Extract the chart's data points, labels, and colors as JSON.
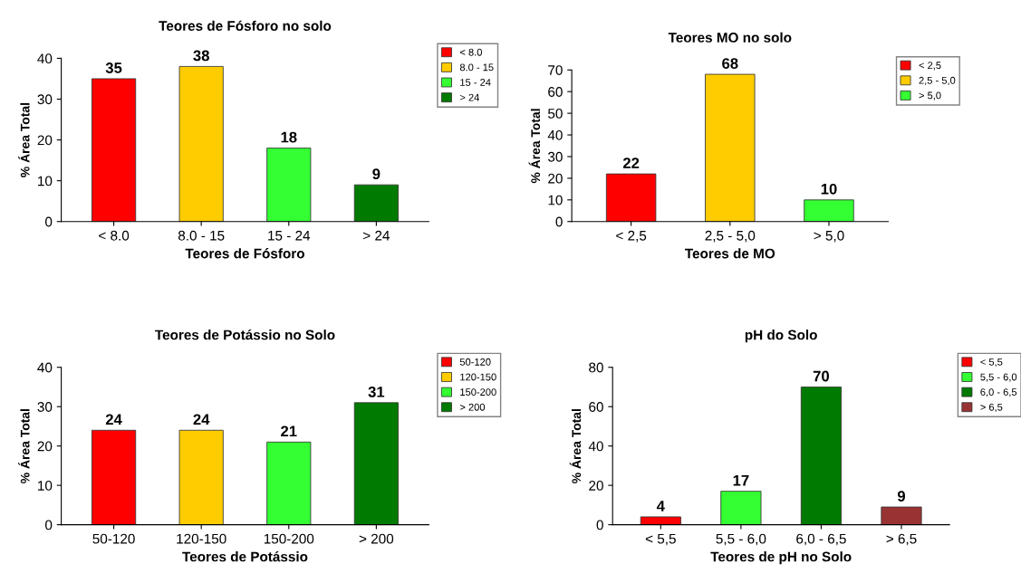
{
  "chart_data": [
    {
      "type": "bar",
      "title": "Teores de Fósforo no solo",
      "xlabel": "Teores de Fósforo",
      "ylabel": "% Área Total",
      "categories": [
        "< 8.0",
        "8.0 - 15",
        "15 - 24",
        "> 24"
      ],
      "series": [
        {
          "name": "< 8.0",
          "color": "#ff0000",
          "values": [
            35,
            null,
            null,
            null
          ]
        },
        {
          "name": "8.0 - 15",
          "color": "#ffcc00",
          "values": [
            null,
            38,
            null,
            null
          ]
        },
        {
          "name": "15 - 24",
          "color": "#33ff33",
          "values": [
            null,
            null,
            18,
            null
          ]
        },
        {
          "name": "> 24",
          "color": "#007a00",
          "values": [
            null,
            null,
            null,
            9
          ]
        }
      ],
      "ylim": [
        0,
        40
      ],
      "yticks": [
        0,
        10,
        20,
        30,
        40
      ],
      "data_labels": true,
      "legend": "top right"
    },
    {
      "type": "bar",
      "title": "Teores MO no solo",
      "xlabel": "Teores de MO",
      "ylabel": "% Área Total",
      "categories": [
        "< 2,5",
        "2,5 - 5,0",
        "> 5,0"
      ],
      "series": [
        {
          "name": "< 2,5",
          "color": "#ff0000",
          "values": [
            22,
            null,
            null
          ]
        },
        {
          "name": "2,5 - 5,0",
          "color": "#ffcc00",
          "values": [
            null,
            68,
            null
          ]
        },
        {
          "name": "> 5,0",
          "color": "#33ff33",
          "values": [
            null,
            null,
            10
          ]
        }
      ],
      "ylim": [
        0,
        70
      ],
      "yticks": [
        0,
        10,
        20,
        30,
        40,
        50,
        60,
        70
      ],
      "data_labels": true,
      "legend": "top right"
    },
    {
      "type": "bar",
      "title": "Teores de Potássio no Solo",
      "xlabel": "Teores de Potássio",
      "ylabel": "% Área Total",
      "categories": [
        "50-120",
        "120-150",
        "150-200",
        "> 200"
      ],
      "series": [
        {
          "name": "50-120",
          "color": "#ff0000",
          "values": [
            24,
            null,
            null,
            null
          ]
        },
        {
          "name": "120-150",
          "color": "#ffcc00",
          "values": [
            null,
            24,
            null,
            null
          ]
        },
        {
          "name": "150-200",
          "color": "#33ff33",
          "values": [
            null,
            null,
            21,
            null
          ]
        },
        {
          "name": "> 200",
          "color": "#007a00",
          "values": [
            null,
            null,
            null,
            31
          ]
        }
      ],
      "ylim": [
        0,
        40
      ],
      "yticks": [
        0,
        10,
        20,
        30,
        40
      ],
      "data_labels": true,
      "legend": "top right"
    },
    {
      "type": "bar",
      "title": "pH do Solo",
      "xlabel": "Teores de pH no Solo",
      "ylabel": "% Área Total",
      "categories": [
        "< 5,5",
        "5,5 - 6,0",
        "6,0 - 6,5",
        "> 6,5"
      ],
      "series": [
        {
          "name": "< 5,5",
          "color": "#ff0000",
          "values": [
            4,
            null,
            null,
            null
          ]
        },
        {
          "name": "5,5 - 6,0",
          "color": "#33ff33",
          "values": [
            null,
            17,
            null,
            null
          ]
        },
        {
          "name": "6,0 - 6,5",
          "color": "#007a00",
          "values": [
            null,
            null,
            70,
            null
          ]
        },
        {
          "name": "> 6,5",
          "color": "#993333",
          "values": [
            null,
            null,
            null,
            9
          ]
        }
      ],
      "ylim": [
        0,
        80
      ],
      "yticks": [
        0,
        20,
        40,
        60,
        80
      ],
      "data_labels": true,
      "legend": "top right"
    }
  ]
}
